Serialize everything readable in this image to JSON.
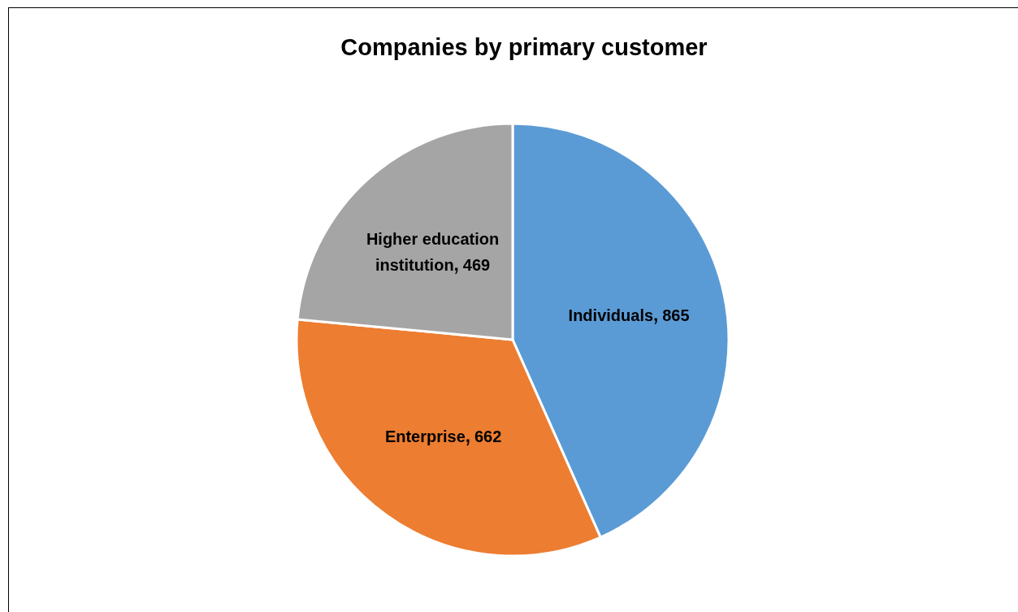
{
  "chart_data": {
    "type": "pie",
    "title": "Companies by primary customer",
    "categories": [
      "Individuals",
      "Enterprise",
      "Higher education institution"
    ],
    "values": [
      865,
      662,
      469
    ],
    "colors": [
      "#5b9bd5",
      "#ed7d31",
      "#a5a5a5"
    ],
    "data_labels": true
  }
}
